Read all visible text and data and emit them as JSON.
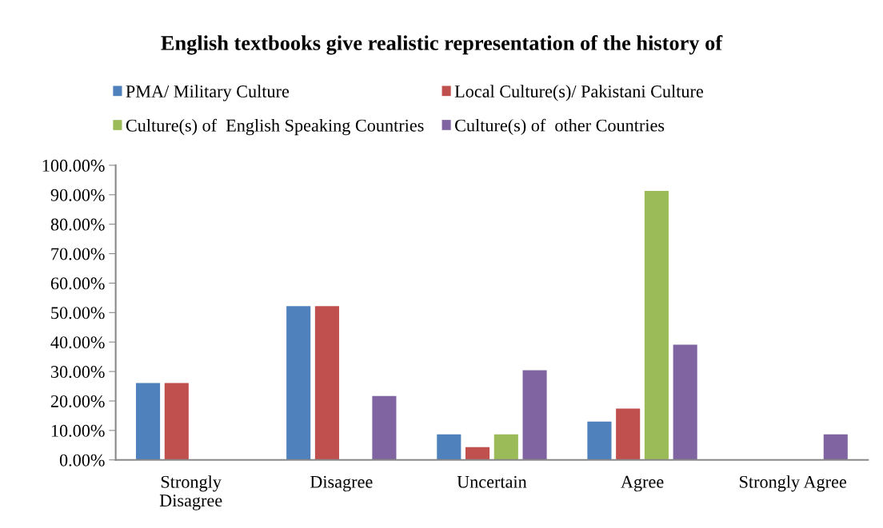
{
  "chart_data": {
    "type": "bar",
    "title": "English textbooks give realistic representation of the history of",
    "categories": [
      "Strongly\nDisagree",
      "Disagree",
      "Uncertain",
      "Agree",
      "Strongly Agree"
    ],
    "series": [
      {
        "name": "PMA/ Military Culture",
        "color": "#4f81bd",
        "values": [
          26.1,
          52.2,
          8.7,
          13.0,
          0
        ]
      },
      {
        "name": "Local Culture(s)/ Pakistani Culture",
        "color": "#c0504d",
        "values": [
          26.1,
          52.2,
          4.3,
          17.4,
          0
        ]
      },
      {
        "name": "Culture(s) of  English Speaking Countries",
        "color": "#9bbb59",
        "values": [
          0,
          0,
          8.7,
          91.3,
          0
        ]
      },
      {
        "name": "Culture(s) of  other Countries",
        "color": "#8064a2",
        "values": [
          0,
          21.7,
          30.4,
          39.1,
          8.7
        ]
      }
    ],
    "ylim": [
      0,
      100
    ],
    "yticks": [
      {
        "value": 0,
        "label": "0.00%"
      },
      {
        "value": 10,
        "label": "10.00%"
      },
      {
        "value": 20,
        "label": "20.00%"
      },
      {
        "value": 30,
        "label": "30.00%"
      },
      {
        "value": 40,
        "label": "40.00%"
      },
      {
        "value": 50,
        "label": "50.00%"
      },
      {
        "value": 60,
        "label": "60.00%"
      },
      {
        "value": 70,
        "label": "70.00%"
      },
      {
        "value": 80,
        "label": "80.00%"
      },
      {
        "value": 90,
        "label": "90.00%"
      },
      {
        "value": 100,
        "label": "100.00%"
      }
    ],
    "grid": false,
    "legend": "top"
  }
}
